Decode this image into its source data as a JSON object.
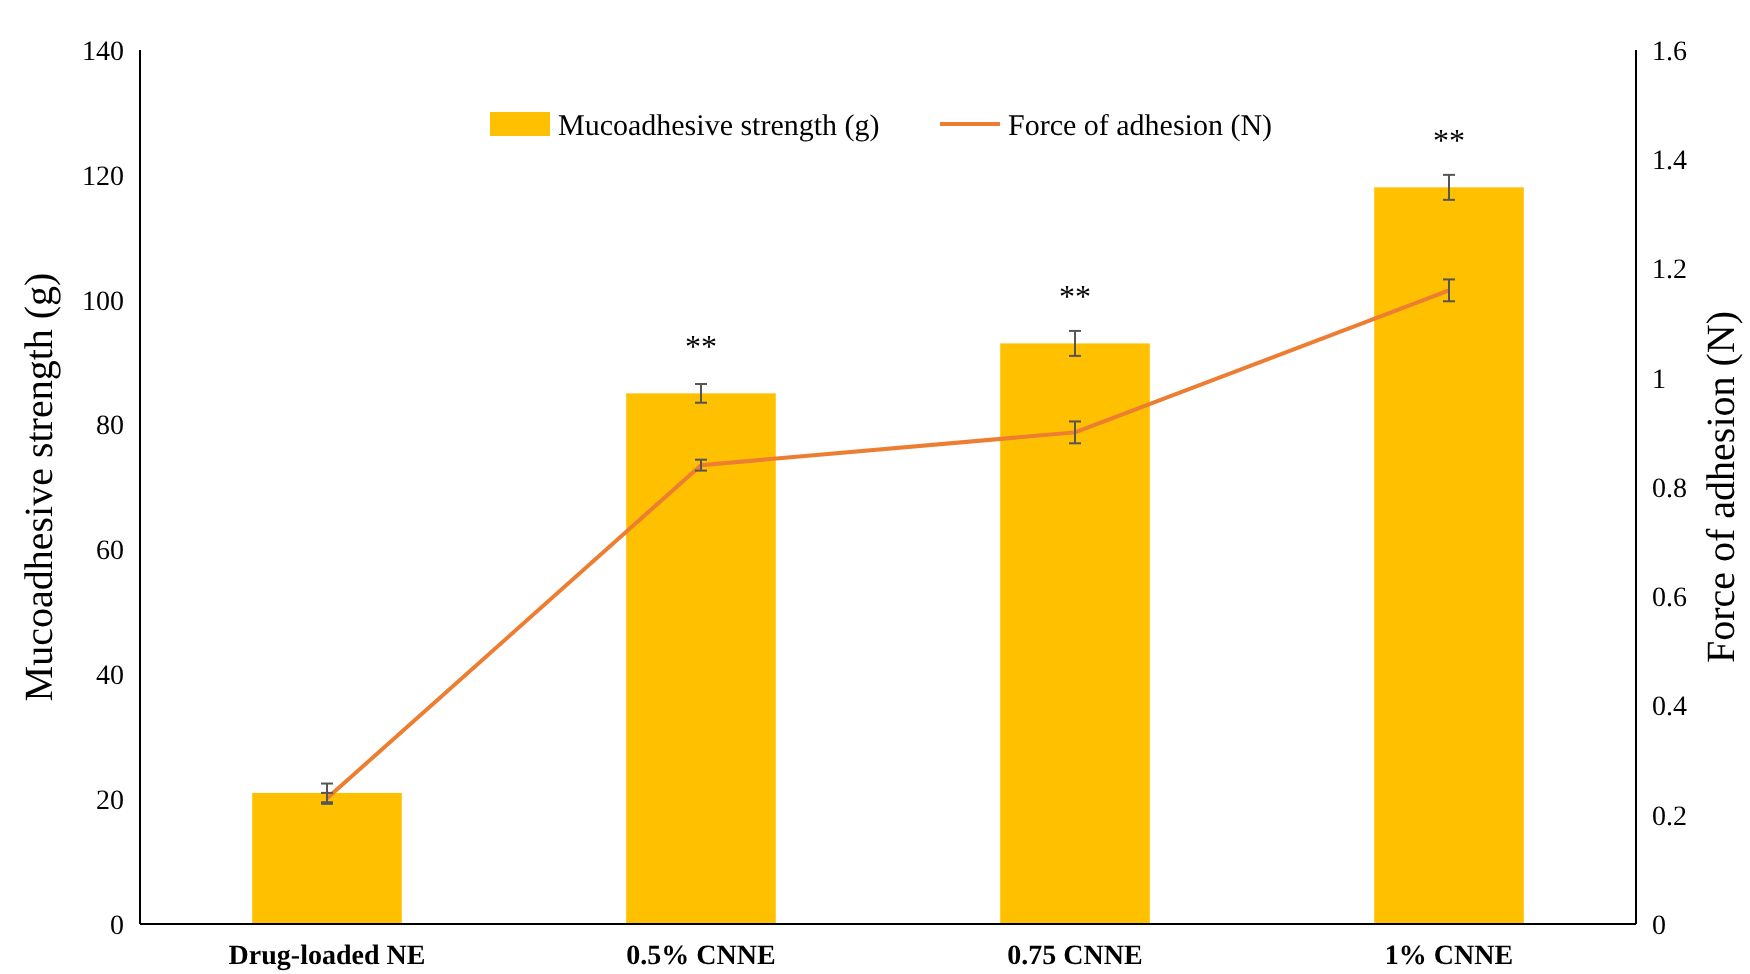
{
  "chart_data": {
    "type": "bar",
    "categories": [
      "Drug-loaded NE",
      "0.5% CNNE",
      "0.75 CNNE",
      "1% CNNE"
    ],
    "ylabel": "Mucoadhesive  strength  (g)",
    "y2label": "Force of adhesion (N)",
    "ylim": [
      0,
      140
    ],
    "yticks": [
      0,
      20,
      40,
      60,
      80,
      100,
      120,
      140
    ],
    "y2lim": [
      0,
      1.6
    ],
    "y2ticks": [
      0,
      0.2,
      0.4,
      0.6,
      0.8,
      1,
      1.2,
      1.4,
      1.6
    ],
    "series": [
      {
        "name": "Mucoadhesive strength (g)",
        "color": "#ffc000",
        "values": [
          21,
          85,
          93,
          118
        ],
        "errors": [
          1.5,
          1.5,
          2,
          2
        ]
      },
      {
        "name": "Force of adhesion (N)",
        "type": "line",
        "axis": "y2",
        "color": "#ed7d31",
        "values": [
          0.23,
          0.84,
          0.9,
          1.16
        ],
        "errors": [
          0.01,
          0.01,
          0.02,
          0.02
        ]
      }
    ],
    "annotations": [
      {
        "text": "**",
        "x": "0.5% CNNE",
        "y": 85
      },
      {
        "text": "**",
        "x": "0.75 CNNE",
        "y": 93
      },
      {
        "text": "**",
        "x": "1% CNNE",
        "y": 118
      }
    ],
    "legend": "top",
    "marker": "none"
  }
}
